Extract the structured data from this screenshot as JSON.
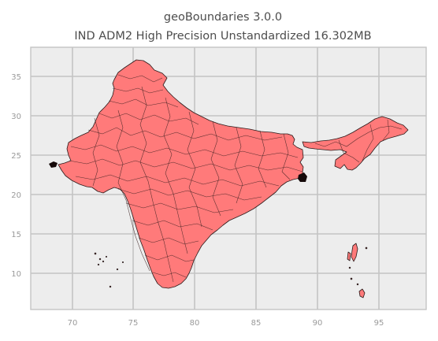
{
  "figure": {
    "title_line1": "geoBoundaries 3.0.0",
    "title_line2": "IND ADM2 High Precision Unstandardized 16.302MB"
  },
  "axes": {
    "x_ticks": [
      "70",
      "75",
      "80",
      "85",
      "90",
      "95"
    ],
    "y_ticks": [
      "10",
      "15",
      "20",
      "25",
      "30",
      "35"
    ]
  },
  "map": {
    "country": "IND",
    "admin_level": "ADM2",
    "fill_color": "#ff7a7a",
    "edge_color": "#2a1a1a",
    "background_color": "#ededed",
    "grid": true,
    "x_range": [
      66.5,
      98.2
    ],
    "y_range": [
      5.0,
      39.0
    ]
  }
}
